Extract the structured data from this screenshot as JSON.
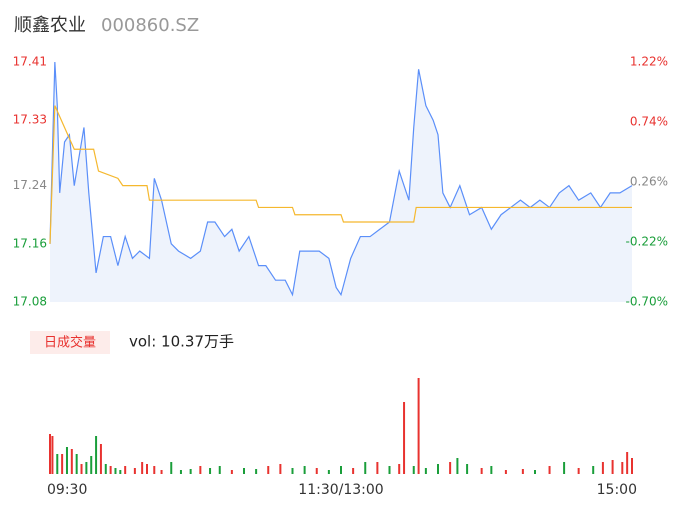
{
  "header": {
    "name": "顺鑫农业",
    "code": "000860.SZ"
  },
  "chart_data": [
    {
      "type": "line",
      "xlim": [
        0,
        240
      ],
      "ylim": [
        17.08,
        17.41
      ],
      "yticks": [
        17.08,
        17.16,
        17.24,
        17.33,
        17.41
      ],
      "ytick_colors": [
        "#1a9e3a",
        "#1a9e3a",
        "#888888",
        "#e8322f",
        "#e8322f"
      ],
      "y2lim": [
        -0.7,
        1.22
      ],
      "y2ticks": [
        {
          "value": -0.7,
          "label": "-0.70%"
        },
        {
          "value": -0.22,
          "label": "-0.22%"
        },
        {
          "value": 0.26,
          "label": "0.26%"
        },
        {
          "value": 0.74,
          "label": "0.74%"
        },
        {
          "value": 1.22,
          "label": "1.22%"
        }
      ],
      "area_color": "#eef3fc",
      "series": [
        {
          "name": "price",
          "color": "#5b8ff9",
          "x": [
            0,
            2,
            3,
            4,
            6,
            8,
            10,
            14,
            16,
            19,
            22,
            25,
            28,
            31,
            34,
            37,
            41,
            43,
            46,
            50,
            53,
            58,
            62,
            65,
            68,
            72,
            75,
            78,
            82,
            86,
            89,
            93,
            97,
            100,
            103,
            107,
            111,
            115,
            118,
            120,
            124,
            128,
            132,
            136,
            140,
            144,
            148,
            150,
            152,
            155,
            158,
            160,
            162,
            165,
            169,
            173,
            178,
            182,
            186,
            190,
            194,
            198,
            202,
            206,
            210,
            214,
            218,
            223,
            227,
            231,
            235,
            240
          ],
          "values": [
            17.16,
            17.41,
            17.35,
            17.23,
            17.3,
            17.31,
            17.24,
            17.32,
            17.23,
            17.12,
            17.17,
            17.17,
            17.13,
            17.17,
            17.14,
            17.15,
            17.14,
            17.25,
            17.22,
            17.16,
            17.15,
            17.14,
            17.15,
            17.19,
            17.19,
            17.17,
            17.18,
            17.15,
            17.17,
            17.13,
            17.13,
            17.11,
            17.11,
            17.09,
            17.15,
            17.15,
            17.15,
            17.14,
            17.1,
            17.09,
            17.14,
            17.17,
            17.17,
            17.18,
            17.19,
            17.26,
            17.22,
            17.32,
            17.4,
            17.35,
            17.33,
            17.31,
            17.23,
            17.21,
            17.24,
            17.2,
            17.21,
            17.18,
            17.2,
            17.21,
            17.22,
            17.21,
            17.22,
            17.21,
            17.23,
            17.24,
            17.22,
            17.23,
            17.21,
            17.23,
            17.23,
            17.24
          ]
        },
        {
          "name": "average",
          "color": "#f5b82e",
          "x": [
            0,
            2,
            6,
            10,
            18,
            20,
            28,
            30,
            40,
            41,
            85,
            86,
            100,
            101,
            120,
            121,
            150,
            151,
            240
          ],
          "values": [
            17.16,
            17.35,
            17.32,
            17.29,
            17.29,
            17.26,
            17.25,
            17.24,
            17.24,
            17.22,
            17.22,
            17.21,
            17.21,
            17.2,
            17.2,
            17.19,
            17.19,
            17.21,
            17.21
          ]
        }
      ]
    },
    {
      "type": "bar",
      "badge": "日成交量",
      "volume_label": "vol: 10.37万手",
      "xlim": [
        0,
        240
      ],
      "ylim": [
        0,
        100
      ],
      "xticks": [
        {
          "value": 0,
          "label": "09:30"
        },
        {
          "value": 120,
          "label": "11:30/13:00"
        },
        {
          "value": 240,
          "label": "15:00"
        }
      ],
      "x": [
        0,
        1,
        3,
        5,
        7,
        9,
        11,
        13,
        15,
        17,
        19,
        21,
        23,
        25,
        27,
        29,
        31,
        35,
        38,
        40,
        43,
        46,
        50,
        54,
        58,
        62,
        66,
        70,
        75,
        80,
        85,
        90,
        95,
        100,
        105,
        110,
        115,
        120,
        125,
        130,
        135,
        140,
        144,
        146,
        150,
        152,
        155,
        160,
        165,
        168,
        172,
        178,
        182,
        188,
        195,
        200,
        206,
        212,
        218,
        224,
        228,
        232,
        236,
        238,
        240
      ],
      "values": [
        40,
        38,
        20,
        20,
        27,
        25,
        20,
        10,
        12,
        18,
        38,
        30,
        10,
        8,
        6,
        4,
        8,
        6,
        12,
        10,
        8,
        4,
        12,
        4,
        5,
        8,
        6,
        8,
        4,
        6,
        5,
        8,
        10,
        6,
        8,
        6,
        4,
        8,
        6,
        12,
        12,
        8,
        10,
        72,
        8,
        96,
        6,
        10,
        12,
        16,
        10,
        6,
        8,
        4,
        5,
        4,
        8,
        12,
        6,
        8,
        12,
        14,
        12,
        22,
        16
      ],
      "colors": [
        "#e8322f",
        "#e8322f",
        "#1a9e3a",
        "#e8322f",
        "#1a9e3a",
        "#e8322f",
        "#1a9e3a",
        "#e8322f",
        "#1a9e3a",
        "#1a9e3a",
        "#1a9e3a",
        "#e8322f",
        "#1a9e3a",
        "#e8322f",
        "#1a9e3a",
        "#1a9e3a",
        "#e8322f",
        "#e8322f",
        "#e8322f",
        "#e8322f",
        "#e8322f",
        "#e8322f",
        "#1a9e3a",
        "#1a9e3a",
        "#1a9e3a",
        "#e8322f",
        "#1a9e3a",
        "#1a9e3a",
        "#e8322f",
        "#1a9e3a",
        "#1a9e3a",
        "#e8322f",
        "#e8322f",
        "#1a9e3a",
        "#1a9e3a",
        "#e8322f",
        "#1a9e3a",
        "#1a9e3a",
        "#e8322f",
        "#1a9e3a",
        "#e8322f",
        "#1a9e3a",
        "#e8322f",
        "#e8322f",
        "#1a9e3a",
        "#e8322f",
        "#1a9e3a",
        "#1a9e3a",
        "#e8322f",
        "#1a9e3a",
        "#1a9e3a",
        "#e8322f",
        "#1a9e3a",
        "#e8322f",
        "#e8322f",
        "#1a9e3a",
        "#e8322f",
        "#1a9e3a",
        "#e8322f",
        "#1a9e3a",
        "#e8322f",
        "#e8322f",
        "#e8322f",
        "#e8322f",
        "#e8322f"
      ]
    }
  ]
}
